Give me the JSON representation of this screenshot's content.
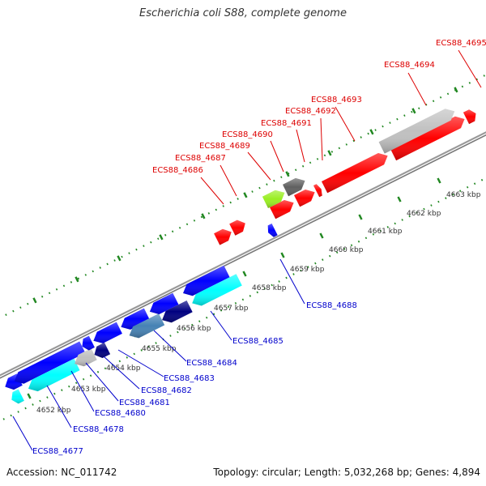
{
  "title": "Escherichia coli S88, complete genome",
  "footer": {
    "accession": "Accession: NC_011742",
    "summary": "Topology: circular; Length: 5,032,268 bp; Genes: 4,894"
  },
  "scale_labels": [
    "4652 kbp",
    "4653 kbp",
    "4654 kbp",
    "4655 kbp",
    "4656 kbp",
    "4657 kbp",
    "4658 kbp",
    "4659 kbp",
    "4660 kbp",
    "4661 kbp",
    "4662 kbp",
    "4663 kbp"
  ],
  "forward_labels": [
    "ECS88_4686",
    "ECS88_4687",
    "ECS88_4689",
    "ECS88_4690",
    "ECS88_4691",
    "ECS88_4692",
    "ECS88_4693",
    "ECS88_4694",
    "ECS88_4695"
  ],
  "reverse_labels": [
    "ECS88_4677",
    "ECS88_4678",
    "ECS88_4680",
    "ECS88_4681",
    "ECS88_4682",
    "ECS88_4683",
    "ECS88_4684",
    "ECS88_4685",
    "ECS88_4688"
  ],
  "colors": {
    "forward_gene": "#ff0000",
    "reverse_gene": "#0000ff",
    "cyan_gene": "#00ffff",
    "navy_gene": "#000080",
    "steel_gene": "#4682b4",
    "grey_gene": "#c0c0c0",
    "dark_grey_gene": "#606060",
    "lime_gene": "#99ee22",
    "backbone": "#999999",
    "tick": "#228822",
    "forward_label": "#dd0000",
    "reverse_label": "#0000cc"
  }
}
